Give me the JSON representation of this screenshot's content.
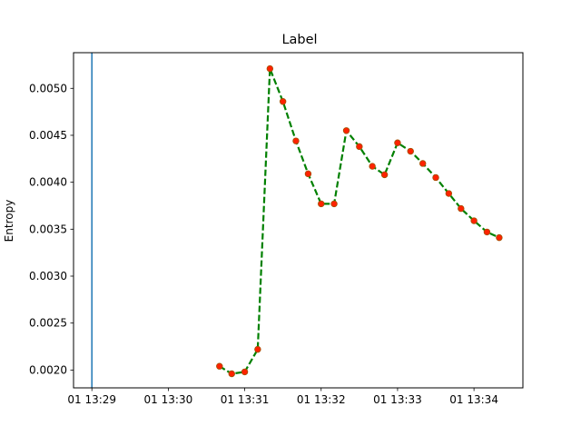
{
  "chart_data": {
    "type": "line",
    "title": "Label",
    "xlabel": "",
    "ylabel": "Entropy",
    "x_tick_labels": [
      "01 13:29",
      "01 13:30",
      "01 13:31",
      "01 13:32",
      "01 13:33",
      "01 13:34"
    ],
    "x_tick_minutes": [
      29,
      30,
      31,
      32,
      33,
      34
    ],
    "xlim_minutes": [
      28.76,
      34.64
    ],
    "y_ticks": [
      0.002,
      0.0025,
      0.003,
      0.0035,
      0.004,
      0.0045,
      0.005
    ],
    "y_tick_labels": [
      "0.0020",
      "0.0025",
      "0.0030",
      "0.0035",
      "0.0040",
      "0.0045",
      "0.0050"
    ],
    "ylim": [
      0.00181,
      0.00538
    ],
    "vertical_line_minute": 29,
    "grid": false,
    "legend": "none",
    "colors": {
      "line": "#008000",
      "marker_face": "#ff2200",
      "marker_edge": "#a05000",
      "vline": "#1f77b4"
    },
    "series": [
      {
        "x_minutes": [
          30.67,
          30.83,
          31.0,
          31.17,
          31.33,
          31.5,
          31.67,
          31.83,
          32.0,
          32.17,
          32.33,
          32.5,
          32.67,
          32.83,
          33.0,
          33.17,
          33.33,
          33.5,
          33.67,
          33.83,
          34.0,
          34.17,
          34.33
        ],
        "values": [
          0.00204,
          0.00196,
          0.00198,
          0.00222,
          0.00521,
          0.00486,
          0.00444,
          0.00409,
          0.00377,
          0.00377,
          0.00455,
          0.00438,
          0.00417,
          0.00408,
          0.00442,
          0.00433,
          0.0042,
          0.00405,
          0.00388,
          0.00372,
          0.00359,
          0.00347,
          0.00341
        ]
      }
    ]
  }
}
